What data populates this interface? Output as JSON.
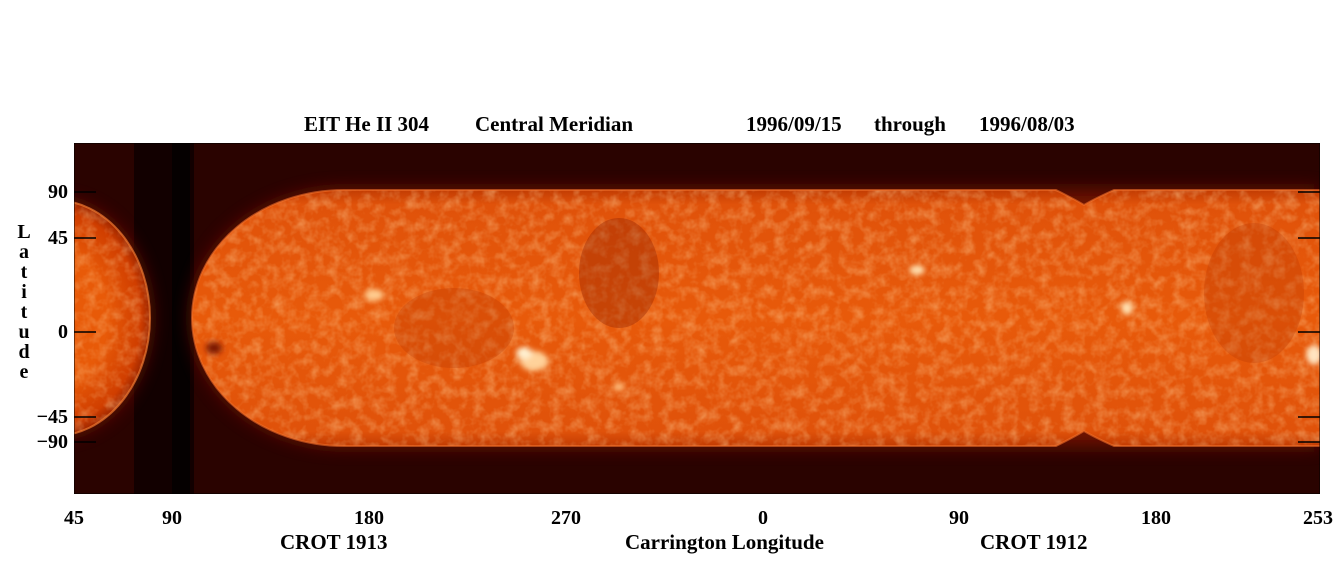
{
  "header": {
    "instrument": "EIT He II 304",
    "mode": "Central Meridian",
    "start_date": "1996/09/15",
    "through": "through",
    "end_date": "1996/08/03"
  },
  "y_axis": {
    "title_letters": [
      "L",
      "a",
      "t",
      "i",
      "t",
      "u",
      "d",
      "e"
    ],
    "ticks": [
      "90",
      "45",
      "0",
      "−45",
      "−90"
    ]
  },
  "x_axis": {
    "ticks": [
      "45",
      "90",
      "180",
      "270",
      "0",
      "90",
      "180",
      "253"
    ],
    "title": "Carrington Longitude",
    "rotation_left": "CROT 1913",
    "rotation_right": "CROT 1912"
  },
  "colors": {
    "background": "#ffffff",
    "plot_background": "#1a0000",
    "sun_base": "#e24f00",
    "sun_bright": "#ffb070",
    "limb_glow": "#7a1200"
  }
}
